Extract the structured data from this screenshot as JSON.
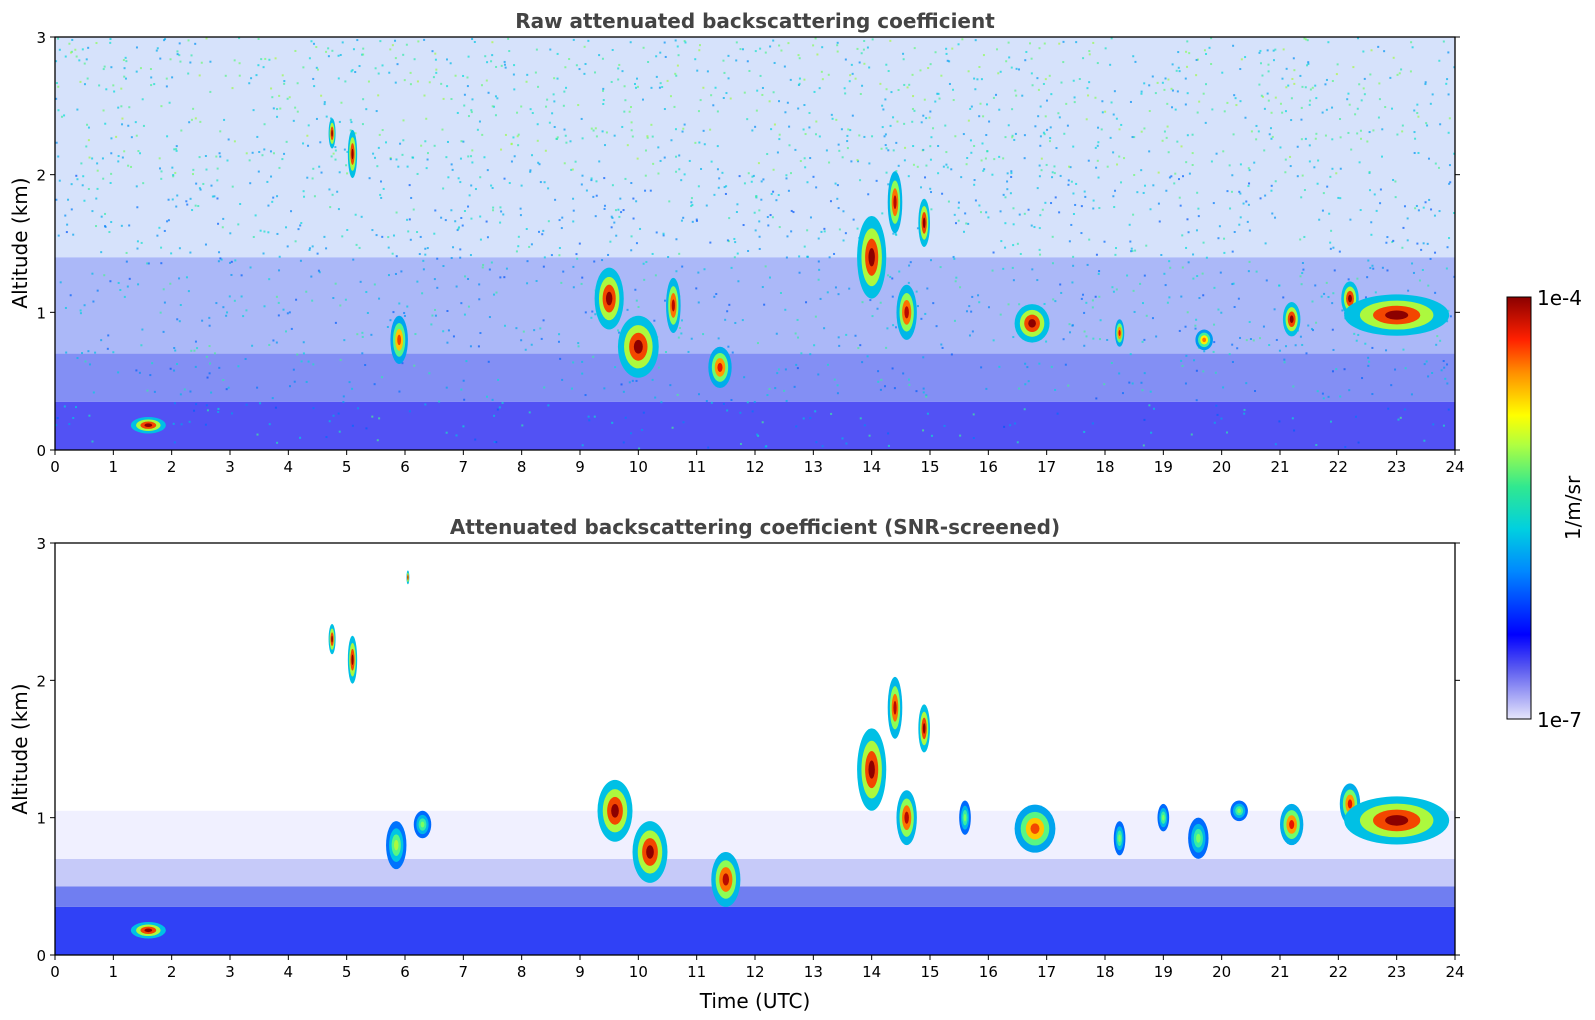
{
  "chart_data": [
    {
      "type": "heatmap",
      "title": "Raw attenuated backscattering coefficient",
      "xlabel": "",
      "ylabel": "Altitude (km)",
      "xlim": [
        0,
        24
      ],
      "ylim": [
        0,
        3
      ],
      "x_ticks": [
        "0",
        "1",
        "2",
        "3",
        "4",
        "5",
        "6",
        "7",
        "8",
        "9",
        "10",
        "11",
        "12",
        "13",
        "14",
        "15",
        "16",
        "17",
        "18",
        "19",
        "20",
        "21",
        "22",
        "23",
        "24"
      ],
      "y_ticks": [
        "0",
        "1",
        "2",
        "3"
      ],
      "grid": false,
      "features": [
        {
          "x": 1.6,
          "y": 0.18,
          "w": 0.6,
          "h": 0.12,
          "level": 1.0
        },
        {
          "x": 4.75,
          "y": 2.3,
          "w": 0.12,
          "h": 0.22,
          "level": 1.0
        },
        {
          "x": 5.1,
          "y": 2.15,
          "w": 0.16,
          "h": 0.35,
          "level": 1.0
        },
        {
          "x": 5.9,
          "y": 0.8,
          "w": 0.3,
          "h": 0.35,
          "level": 0.85
        },
        {
          "x": 9.5,
          "y": 1.1,
          "w": 0.5,
          "h": 0.45,
          "level": 1.0
        },
        {
          "x": 10.0,
          "y": 0.75,
          "w": 0.7,
          "h": 0.45,
          "level": 1.0
        },
        {
          "x": 10.6,
          "y": 1.05,
          "w": 0.25,
          "h": 0.4,
          "level": 0.95
        },
        {
          "x": 11.4,
          "y": 0.6,
          "w": 0.4,
          "h": 0.3,
          "level": 0.9
        },
        {
          "x": 14.0,
          "y": 1.4,
          "w": 0.5,
          "h": 0.6,
          "level": 1.0
        },
        {
          "x": 14.4,
          "y": 1.8,
          "w": 0.25,
          "h": 0.45,
          "level": 0.95
        },
        {
          "x": 14.9,
          "y": 1.65,
          "w": 0.2,
          "h": 0.35,
          "level": 1.0
        },
        {
          "x": 14.6,
          "y": 1.0,
          "w": 0.35,
          "h": 0.4,
          "level": 0.95
        },
        {
          "x": 16.75,
          "y": 0.92,
          "w": 0.6,
          "h": 0.28,
          "level": 1.0
        },
        {
          "x": 18.25,
          "y": 0.85,
          "w": 0.16,
          "h": 0.2,
          "level": 0.9
        },
        {
          "x": 19.7,
          "y": 0.8,
          "w": 0.3,
          "h": 0.15,
          "level": 0.8
        },
        {
          "x": 21.2,
          "y": 0.95,
          "w": 0.3,
          "h": 0.25,
          "level": 1.0
        },
        {
          "x": 22.2,
          "y": 1.1,
          "w": 0.3,
          "h": 0.25,
          "level": 1.0
        },
        {
          "x": 23.0,
          "y": 0.98,
          "w": 1.8,
          "h": 0.3,
          "level": 1.0
        }
      ]
    },
    {
      "type": "heatmap",
      "title": "Attenuated backscattering coefficient (SNR-screened)",
      "xlabel": "Time (UTC)",
      "ylabel": "Altitude (km)",
      "xlim": [
        0,
        24
      ],
      "ylim": [
        0,
        3
      ],
      "x_ticks": [
        "0",
        "1",
        "2",
        "3",
        "4",
        "5",
        "6",
        "7",
        "8",
        "9",
        "10",
        "11",
        "12",
        "13",
        "14",
        "15",
        "16",
        "17",
        "18",
        "19",
        "20",
        "21",
        "22",
        "23",
        "24"
      ],
      "y_ticks": [
        "0",
        "1",
        "2",
        "3"
      ],
      "grid": false,
      "features": [
        {
          "x": 1.6,
          "y": 0.18,
          "w": 0.6,
          "h": 0.12,
          "level": 1.0
        },
        {
          "x": 4.75,
          "y": 2.3,
          "w": 0.12,
          "h": 0.22,
          "level": 1.0
        },
        {
          "x": 5.1,
          "y": 2.15,
          "w": 0.16,
          "h": 0.35,
          "level": 1.0
        },
        {
          "x": 6.05,
          "y": 2.75,
          "w": 0.05,
          "h": 0.1,
          "level": 1.0
        },
        {
          "x": 5.85,
          "y": 0.8,
          "w": 0.35,
          "h": 0.35,
          "level": 0.6
        },
        {
          "x": 6.3,
          "y": 0.95,
          "w": 0.3,
          "h": 0.2,
          "level": 0.55
        },
        {
          "x": 9.6,
          "y": 1.05,
          "w": 0.6,
          "h": 0.45,
          "level": 1.0
        },
        {
          "x": 10.2,
          "y": 0.75,
          "w": 0.6,
          "h": 0.45,
          "level": 1.0
        },
        {
          "x": 11.5,
          "y": 0.55,
          "w": 0.5,
          "h": 0.4,
          "level": 0.95
        },
        {
          "x": 14.0,
          "y": 1.35,
          "w": 0.5,
          "h": 0.6,
          "level": 1.0
        },
        {
          "x": 14.4,
          "y": 1.8,
          "w": 0.25,
          "h": 0.45,
          "level": 0.95
        },
        {
          "x": 14.9,
          "y": 1.65,
          "w": 0.2,
          "h": 0.35,
          "level": 1.0
        },
        {
          "x": 14.6,
          "y": 1.0,
          "w": 0.35,
          "h": 0.4,
          "level": 0.95
        },
        {
          "x": 15.6,
          "y": 1.0,
          "w": 0.2,
          "h": 0.25,
          "level": 0.55
        },
        {
          "x": 16.8,
          "y": 0.92,
          "w": 0.7,
          "h": 0.35,
          "level": 0.85
        },
        {
          "x": 18.25,
          "y": 0.85,
          "w": 0.2,
          "h": 0.25,
          "level": 0.55
        },
        {
          "x": 19.0,
          "y": 1.0,
          "w": 0.2,
          "h": 0.2,
          "level": 0.55
        },
        {
          "x": 19.6,
          "y": 0.85,
          "w": 0.35,
          "h": 0.3,
          "level": 0.55
        },
        {
          "x": 20.3,
          "y": 1.05,
          "w": 0.3,
          "h": 0.15,
          "level": 0.55
        },
        {
          "x": 21.2,
          "y": 0.95,
          "w": 0.4,
          "h": 0.3,
          "level": 0.9
        },
        {
          "x": 22.2,
          "y": 1.1,
          "w": 0.35,
          "h": 0.3,
          "level": 0.9
        },
        {
          "x": 23.0,
          "y": 0.98,
          "w": 1.8,
          "h": 0.35,
          "level": 1.0
        }
      ]
    }
  ],
  "colorbar": {
    "max_label": "1e-4",
    "min_label": "1e-7",
    "unit_label": "1/m/sr",
    "range": [
      "1e-7",
      "1e-4"
    ],
    "scale": "log"
  }
}
